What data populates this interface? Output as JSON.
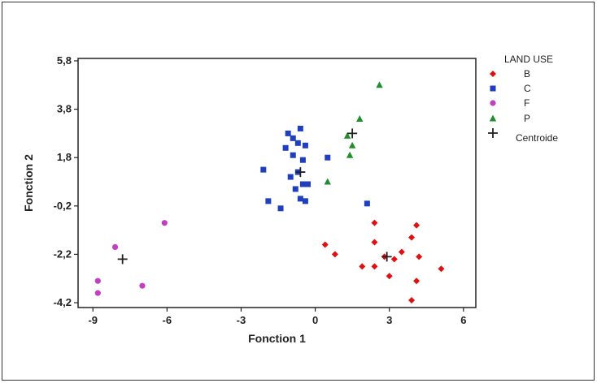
{
  "chart_data": {
    "type": "scatter",
    "xlabel": "Fonction 1",
    "ylabel": "Fonction 2",
    "xlim": [
      -9.6,
      6.5
    ],
    "ylim": [
      -4.4,
      5.9
    ],
    "xticks": [
      -9,
      -6,
      -3,
      0,
      3,
      6
    ],
    "yticks": [
      5.8,
      3.8,
      1.8,
      -0.2,
      -2.2,
      -4.2
    ],
    "xtick_labels": [
      "-9",
      "-6",
      "-3",
      "0",
      "3",
      "6"
    ],
    "ytick_labels": [
      "5,8",
      "3,8",
      "1,8",
      "-0,2",
      "-2,2",
      "-4,2"
    ],
    "grid": false,
    "legend_title": "LAND USE",
    "legend_position": "right",
    "series": [
      {
        "name": "B",
        "marker": "diamond",
        "color": "#e01010",
        "points": [
          [
            0.4,
            -1.8
          ],
          [
            0.8,
            -2.2
          ],
          [
            1.9,
            -2.7
          ],
          [
            2.4,
            -0.9
          ],
          [
            2.4,
            -1.7
          ],
          [
            2.4,
            -2.7
          ],
          [
            2.8,
            -2.3
          ],
          [
            3.0,
            -3.1
          ],
          [
            3.2,
            -2.4
          ],
          [
            3.5,
            -2.1
          ],
          [
            3.9,
            -4.1
          ],
          [
            3.9,
            -1.5
          ],
          [
            4.1,
            -1.0
          ],
          [
            4.1,
            -3.3
          ],
          [
            4.2,
            -2.3
          ],
          [
            5.1,
            -2.8
          ]
        ]
      },
      {
        "name": "C",
        "marker": "square",
        "color": "#1f3fbf",
        "points": [
          [
            -2.1,
            1.3
          ],
          [
            -1.9,
            0.0
          ],
          [
            -1.4,
            -0.3
          ],
          [
            -1.2,
            2.2
          ],
          [
            -1.1,
            2.8
          ],
          [
            -1.0,
            1.0
          ],
          [
            -0.9,
            1.9
          ],
          [
            -0.9,
            2.6
          ],
          [
            -0.8,
            0.5
          ],
          [
            -0.7,
            1.2
          ],
          [
            -0.7,
            2.4
          ],
          [
            -0.6,
            3.0
          ],
          [
            -0.6,
            0.1
          ],
          [
            -0.5,
            0.7
          ],
          [
            -0.5,
            1.7
          ],
          [
            -0.4,
            2.3
          ],
          [
            -0.4,
            0.0
          ],
          [
            -0.3,
            0.7
          ],
          [
            0.5,
            1.8
          ],
          [
            2.1,
            -0.1
          ]
        ]
      },
      {
        "name": "F",
        "marker": "circle",
        "color": "#c040c0",
        "points": [
          [
            -8.8,
            -3.3
          ],
          [
            -8.8,
            -3.8
          ],
          [
            -8.1,
            -1.9
          ],
          [
            -7.0,
            -3.5
          ],
          [
            -6.1,
            -0.9
          ]
        ]
      },
      {
        "name": "P",
        "marker": "triangle",
        "color": "#1f8f2f",
        "points": [
          [
            0.5,
            0.8
          ],
          [
            1.3,
            2.7
          ],
          [
            1.4,
            1.9
          ],
          [
            1.5,
            2.3
          ],
          [
            1.8,
            3.4
          ],
          [
            2.6,
            4.8
          ]
        ]
      },
      {
        "name": "Centroide",
        "marker": "plus",
        "color": "#222222",
        "points": [
          [
            -7.8,
            -2.4
          ],
          [
            -0.6,
            1.2
          ],
          [
            1.5,
            2.8
          ],
          [
            2.9,
            -2.3
          ]
        ]
      }
    ]
  }
}
